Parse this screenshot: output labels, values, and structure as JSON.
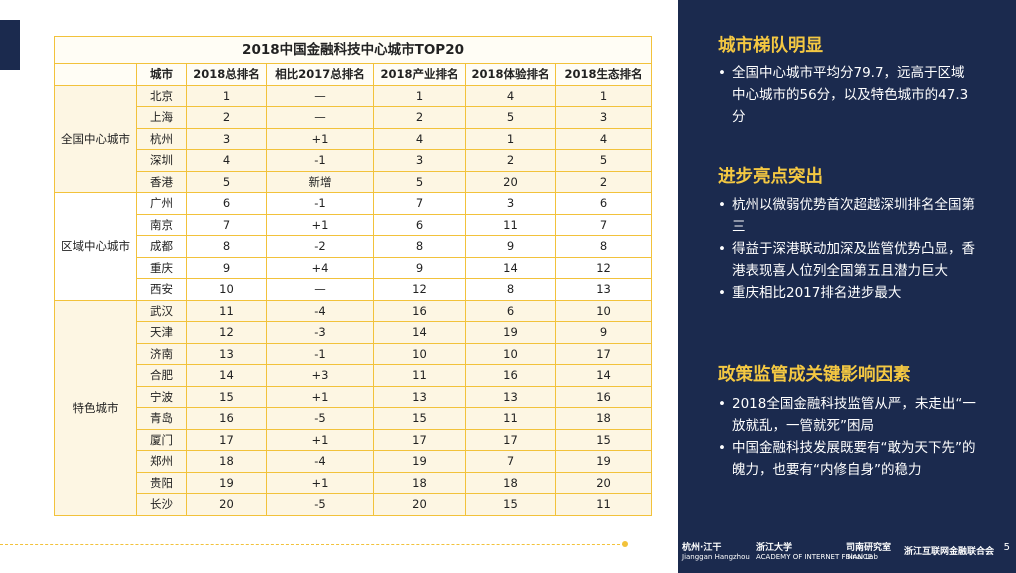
{
  "table": {
    "title": "2018中国金融科技中心城市TOP20",
    "headers": [
      "城市",
      "2018总排名",
      "相比2017总排名",
      "2018产业排名",
      "2018体验排名",
      "2018生态排名"
    ],
    "groups": [
      {
        "name": "全国中心城市",
        "rows": [
          [
            "北京",
            "1",
            "—",
            "1",
            "4",
            "1"
          ],
          [
            "上海",
            "2",
            "—",
            "2",
            "5",
            "3"
          ],
          [
            "杭州",
            "3",
            "+1",
            "4",
            "1",
            "4"
          ],
          [
            "深圳",
            "4",
            "-1",
            "3",
            "2",
            "5"
          ],
          [
            "香港",
            "5",
            "新增",
            "5",
            "20",
            "2"
          ]
        ]
      },
      {
        "name": "区域中心城市",
        "rows": [
          [
            "广州",
            "6",
            "-1",
            "7",
            "3",
            "6"
          ],
          [
            "南京",
            "7",
            "+1",
            "6",
            "11",
            "7"
          ],
          [
            "成都",
            "8",
            "-2",
            "8",
            "9",
            "8"
          ],
          [
            "重庆",
            "9",
            "+4",
            "9",
            "14",
            "12"
          ],
          [
            "西安",
            "10",
            "—",
            "12",
            "8",
            "13"
          ]
        ]
      },
      {
        "name": "特色城市",
        "rows": [
          [
            "武汉",
            "11",
            "-4",
            "16",
            "6",
            "10"
          ],
          [
            "天津",
            "12",
            "-3",
            "14",
            "19",
            "9"
          ],
          [
            "济南",
            "13",
            "-1",
            "10",
            "10",
            "17"
          ],
          [
            "合肥",
            "14",
            "+3",
            "11",
            "16",
            "14"
          ],
          [
            "宁波",
            "15",
            "+1",
            "13",
            "13",
            "16"
          ],
          [
            "青岛",
            "16",
            "-5",
            "15",
            "11",
            "18"
          ],
          [
            "厦门",
            "17",
            "+1",
            "17",
            "17",
            "15"
          ],
          [
            "郑州",
            "18",
            "-4",
            "19",
            "7",
            "19"
          ],
          [
            "贵阳",
            "19",
            "+1",
            "18",
            "18",
            "20"
          ],
          [
            "长沙",
            "20",
            "-5",
            "20",
            "15",
            "11"
          ]
        ]
      }
    ]
  },
  "sections": [
    {
      "title": "城市梯队明显",
      "bullets": [
        "全国中心城市平均分79.7，远高于区域中心城市的56分，以及特色城市的47.3分"
      ]
    },
    {
      "title": "进步亮点突出",
      "bullets": [
        "杭州以微弱优势首次超越深圳排名全国第三",
        "得益于深港联动加深及监管优势凸显，香港表现喜人位列全国第五且潜力巨大",
        "重庆相比2017排名进步最大"
      ]
    },
    {
      "title": "政策监管成关键影响因素",
      "bullets": [
        "2018全国金融科技监管从严，未走出“一放就乱，一管就死”困局",
        "中国金融科技发展既要有“敢为天下先”的魄力，也要有“内修自身”的稳力"
      ]
    }
  ],
  "footer": {
    "logo1": "杭州·江干",
    "logo1_sub": "Jianggan Hangzhou",
    "logo2": "浙江大学",
    "logo2_sub": "ACADEMY OF INTERNET FINANCE",
    "logo3": "司南研究室",
    "logo3_sub": "Sinai Lab",
    "logo4": "浙江互联网金融联合会",
    "page": "5"
  },
  "colors": {
    "navy": "#1b2a4e",
    "gold": "#f4c842",
    "table_border": "#f2c23b",
    "band": "#fdf6e3"
  }
}
